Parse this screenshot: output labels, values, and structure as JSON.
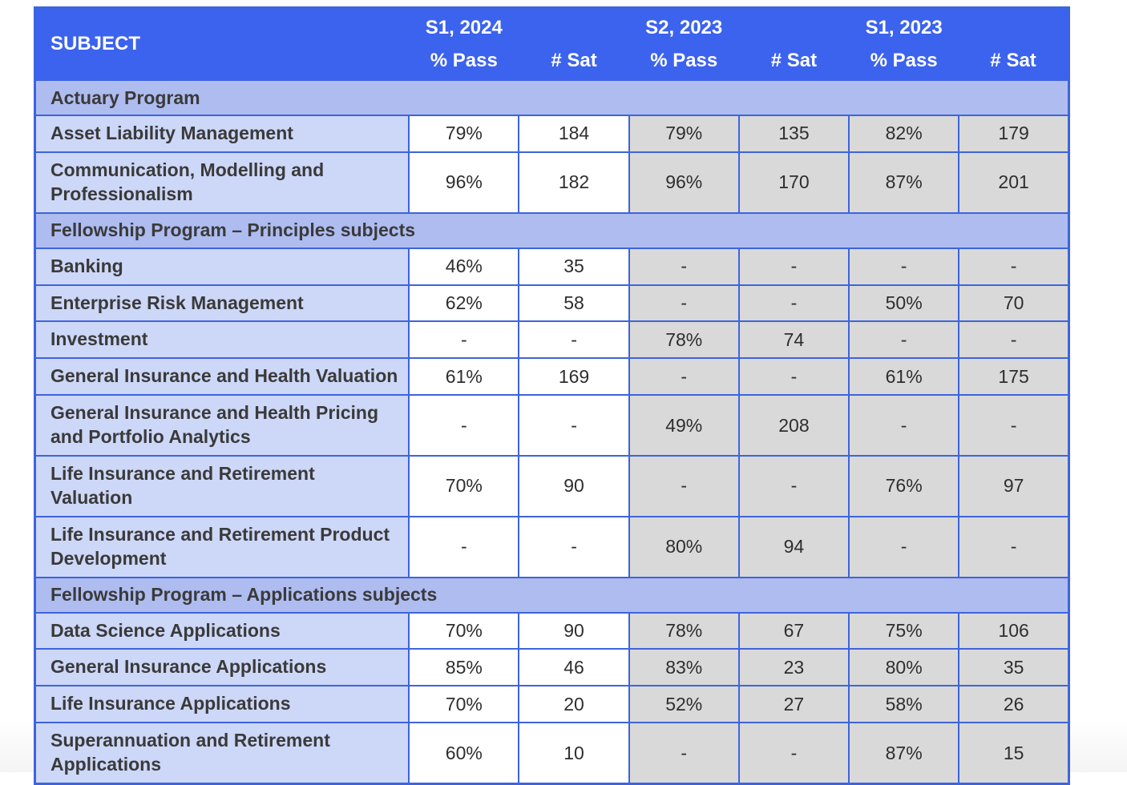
{
  "colors": {
    "header_bg": "#3c63ee",
    "header_text": "#ffffff",
    "section_bg": "#aebcf0",
    "subject_bg": "#cdd7f7",
    "current_period_cell_bg": "#ffffff",
    "past_period_cell_bg": "#d9d9d9",
    "border": "#3d64dd",
    "body_text": "#2e2e2e"
  },
  "table": {
    "header": {
      "subject_label": "SUBJECT",
      "cols": [
        {
          "period": "S1, 2024",
          "sub": "% Pass"
        },
        {
          "period": "",
          "sub": "# Sat"
        },
        {
          "period": "S2, 2023",
          "sub": "% Pass"
        },
        {
          "period": "",
          "sub": "# Sat"
        },
        {
          "period": "S1, 2023",
          "sub": "% Pass"
        },
        {
          "period": "",
          "sub": "# Sat"
        }
      ]
    },
    "sections": [
      {
        "title": "Actuary Program",
        "rows": [
          {
            "subject": "Asset Liability Management",
            "values": [
              "79%",
              "184",
              "79%",
              "135",
              "82%",
              "179"
            ]
          },
          {
            "subject": "Communication, Modelling and Professionalism",
            "values": [
              "96%",
              "182",
              "96%",
              "170",
              "87%",
              "201"
            ]
          }
        ]
      },
      {
        "title": "Fellowship Program – Principles subjects",
        "rows": [
          {
            "subject": "Banking",
            "values": [
              "46%",
              "35",
              "-",
              "-",
              "-",
              "-"
            ]
          },
          {
            "subject": "Enterprise Risk Management",
            "values": [
              "62%",
              "58",
              "-",
              "-",
              "50%",
              "70"
            ]
          },
          {
            "subject": "Investment",
            "values": [
              "-",
              "-",
              "78%",
              "74",
              "-",
              "-"
            ]
          },
          {
            "subject": "General Insurance and Health Valuation",
            "values": [
              "61%",
              "169",
              "-",
              "-",
              "61%",
              "175"
            ]
          },
          {
            "subject": "General Insurance and Health Pricing and Portfolio Analytics",
            "values": [
              "-",
              "-",
              "49%",
              "208",
              "-",
              "-"
            ]
          },
          {
            "subject": "Life Insurance and Retirement Valuation",
            "values": [
              "70%",
              "90",
              "-",
              "-",
              "76%",
              "97"
            ]
          },
          {
            "subject": "Life Insurance and Retirement Product Development",
            "values": [
              "-",
              "-",
              "80%",
              "94",
              "-",
              "-"
            ]
          }
        ]
      },
      {
        "title": "Fellowship Program – Applications subjects",
        "rows": [
          {
            "subject": "Data Science Applications",
            "values": [
              "70%",
              "90",
              "78%",
              "67",
              "75%",
              "106"
            ]
          },
          {
            "subject": "General Insurance Applications",
            "values": [
              "85%",
              "46",
              "83%",
              "23",
              "80%",
              "35"
            ]
          },
          {
            "subject": "Life Insurance Applications",
            "values": [
              "70%",
              "20",
              "52%",
              "27",
              "58%",
              "26"
            ]
          },
          {
            "subject": "Superannuation and Retirement Applications",
            "values": [
              "60%",
              "10",
              "-",
              "-",
              "87%",
              "15"
            ]
          }
        ]
      }
    ]
  }
}
